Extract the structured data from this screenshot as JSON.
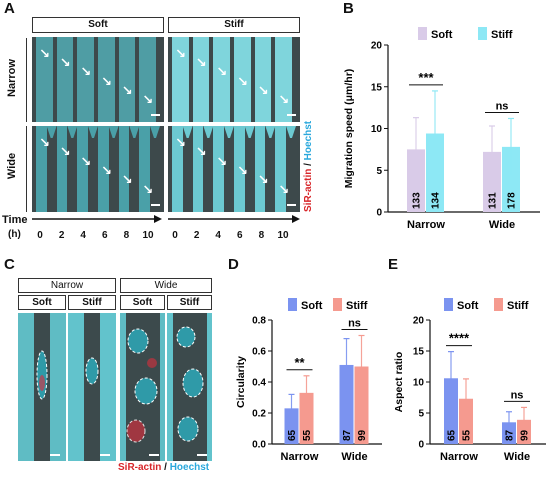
{
  "panels": {
    "A": {
      "letter": "A",
      "headers": [
        "Soft",
        "Stiff"
      ],
      "rows": [
        "Narrow",
        "Wide"
      ],
      "time_label": "Time",
      "time_unit": "(h)",
      "time_ticks": [
        "0",
        "2",
        "4",
        "6",
        "8",
        "10"
      ],
      "stain": {
        "part1": "SiR-actin",
        "sep": " / ",
        "part2": "Hoechst"
      }
    },
    "C": {
      "letter": "C",
      "top_headers": [
        "Narrow",
        "Wide"
      ],
      "sub_headers": [
        "Soft",
        "Stiff",
        "Soft",
        "Stiff"
      ],
      "stain": {
        "part1": "SiR-actin",
        "sep": " / ",
        "part2": "Hoechst"
      }
    },
    "B": {
      "letter": "B"
    },
    "D": {
      "letter": "D"
    },
    "E": {
      "letter": "E"
    }
  },
  "colors": {
    "soft_B": "#d9cbe8",
    "stiff_B": "#8de8f5",
    "soft": "#7b93f0",
    "stiff": "#f59a8f",
    "actin": "#d8262a",
    "hoechst": "#2aa8dc",
    "cyan_field": "#5fbcc4",
    "dark_field": "#3c4a4c"
  },
  "chart_data": [
    {
      "panel": "B",
      "type": "bar",
      "ylabel": "Migration speed (μm/hr)",
      "categories": [
        "Narrow",
        "Wide"
      ],
      "ylim": [
        0,
        20
      ],
      "yticks": [
        0,
        5,
        10,
        15,
        20
      ],
      "series": [
        {
          "name": "Soft",
          "values": [
            7.5,
            7.2
          ],
          "errors": [
            3.8,
            3.1
          ],
          "n": [
            "133",
            "131"
          ]
        },
        {
          "name": "Stiff",
          "values": [
            9.4,
            7.8
          ],
          "errors": [
            5.1,
            3.4
          ],
          "n": [
            "134",
            "178"
          ]
        }
      ],
      "significance": [
        "***",
        "ns"
      ],
      "legend": "top"
    },
    {
      "panel": "D",
      "type": "bar",
      "ylabel": "Circularity",
      "categories": [
        "Narrow",
        "Wide"
      ],
      "ylim": [
        0,
        0.8
      ],
      "yticks": [
        0.0,
        0.2,
        0.4,
        0.6,
        0.8
      ],
      "series": [
        {
          "name": "Soft",
          "values": [
            0.23,
            0.51
          ],
          "errors": [
            0.09,
            0.17
          ],
          "n": [
            "65",
            "87"
          ]
        },
        {
          "name": "Stiff",
          "values": [
            0.33,
            0.5
          ],
          "errors": [
            0.11,
            0.2
          ],
          "n": [
            "55",
            "99"
          ]
        }
      ],
      "significance": [
        "**",
        "ns"
      ],
      "legend": "top"
    },
    {
      "panel": "E",
      "type": "bar",
      "ylabel": "Aspect ratio",
      "categories": [
        "Narrow",
        "Wide"
      ],
      "ylim": [
        0,
        20
      ],
      "yticks": [
        0,
        5,
        10,
        15,
        20
      ],
      "series": [
        {
          "name": "Soft",
          "values": [
            10.6,
            3.5
          ],
          "errors": [
            4.3,
            1.7
          ],
          "n": [
            "65",
            "87"
          ]
        },
        {
          "name": "Stiff",
          "values": [
            7.3,
            3.9
          ],
          "errors": [
            3.2,
            2.0
          ],
          "n": [
            "55",
            "99"
          ]
        }
      ],
      "significance": [
        "****",
        "ns"
      ],
      "legend": "top"
    }
  ]
}
